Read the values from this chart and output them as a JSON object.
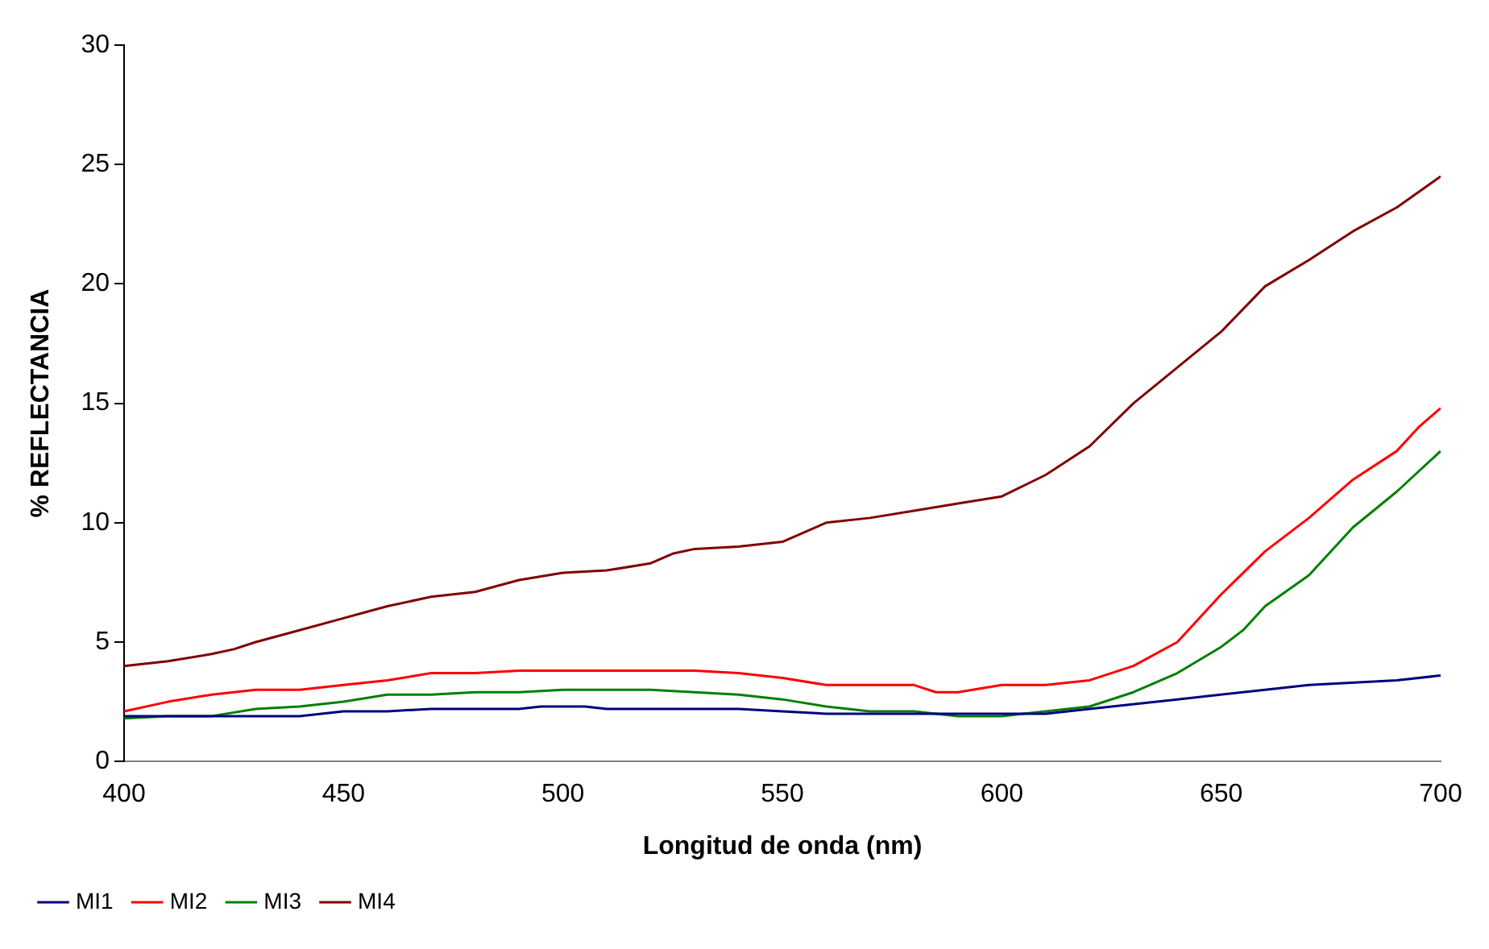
{
  "chart_data": {
    "type": "line",
    "xlabel": "Longitud de onda (nm)",
    "ylabel": "% REFLECTANCIA",
    "xlim": [
      400,
      700
    ],
    "xticks": [
      400,
      450,
      500,
      550,
      600,
      650,
      700
    ],
    "ylim": [
      0,
      30
    ],
    "yticks": [
      0,
      5,
      10,
      15,
      20,
      25,
      30
    ],
    "grid": false,
    "legend": "bottom left",
    "marker": "none",
    "line_style": "solid",
    "series": [
      {
        "name": "MI1",
        "color": "#000080",
        "x": [
          400,
          440,
          450,
          460,
          470,
          490,
          495,
          505,
          510,
          540,
          550,
          560,
          600,
          610,
          620,
          640,
          660,
          670,
          690,
          700
        ],
        "values": [
          1.9,
          1.9,
          2.1,
          2.1,
          2.2,
          2.2,
          2.3,
          2.3,
          2.2,
          2.2,
          2.1,
          2.0,
          2.0,
          2.0,
          2.2,
          2.6,
          3.0,
          3.2,
          3.4,
          3.6
        ]
      },
      {
        "name": "MI2",
        "color": "#ff0000",
        "x": [
          400,
          410,
          420,
          430,
          440,
          450,
          460,
          470,
          480,
          490,
          500,
          520,
          530,
          540,
          550,
          560,
          580,
          585,
          590,
          600,
          610,
          620,
          630,
          640,
          650,
          660,
          670,
          680,
          690,
          695,
          700
        ],
        "values": [
          2.1,
          2.5,
          2.8,
          3.0,
          3.0,
          3.2,
          3.4,
          3.7,
          3.7,
          3.8,
          3.8,
          3.8,
          3.8,
          3.7,
          3.5,
          3.2,
          3.2,
          2.9,
          2.9,
          3.2,
          3.2,
          3.4,
          4.0,
          5.0,
          7.0,
          8.8,
          10.2,
          11.8,
          13.0,
          14.0,
          14.8
        ]
      },
      {
        "name": "MI3",
        "color": "#008000",
        "x": [
          400,
          410,
          420,
          430,
          440,
          450,
          460,
          470,
          480,
          490,
          500,
          520,
          530,
          540,
          550,
          560,
          570,
          580,
          590,
          600,
          610,
          620,
          630,
          640,
          650,
          655,
          660,
          670,
          680,
          690,
          700
        ],
        "values": [
          1.8,
          1.9,
          1.9,
          2.2,
          2.3,
          2.5,
          2.8,
          2.8,
          2.9,
          2.9,
          3.0,
          3.0,
          2.9,
          2.8,
          2.6,
          2.3,
          2.1,
          2.1,
          1.9,
          1.9,
          2.1,
          2.3,
          2.9,
          3.7,
          4.8,
          5.5,
          6.5,
          7.8,
          9.8,
          11.3,
          13.0
        ]
      },
      {
        "name": "MI4",
        "color": "#800000",
        "x": [
          400,
          410,
          420,
          425,
          430,
          440,
          450,
          460,
          470,
          480,
          490,
          500,
          510,
          520,
          525,
          530,
          540,
          550,
          560,
          570,
          580,
          590,
          600,
          610,
          620,
          630,
          640,
          650,
          660,
          670,
          680,
          690,
          700
        ],
        "values": [
          4.0,
          4.2,
          4.5,
          4.7,
          5.0,
          5.5,
          6.0,
          6.5,
          6.9,
          7.1,
          7.6,
          7.9,
          8.0,
          8.3,
          8.7,
          8.9,
          9.0,
          9.2,
          10.0,
          10.2,
          10.5,
          10.8,
          11.1,
          12.0,
          13.2,
          15.0,
          16.5,
          18.0,
          19.9,
          21.0,
          22.2,
          23.2,
          24.5
        ]
      }
    ]
  }
}
